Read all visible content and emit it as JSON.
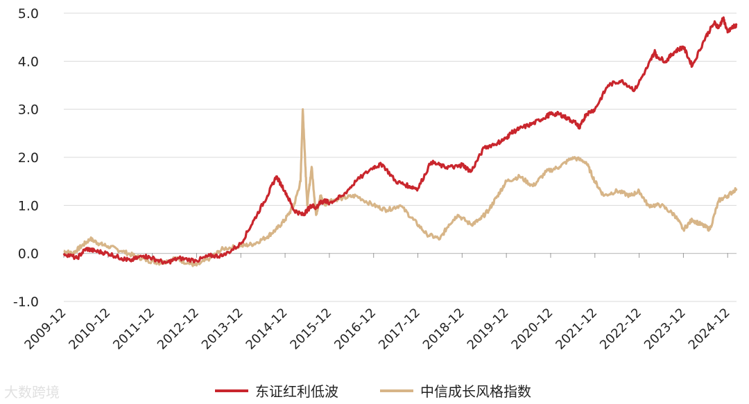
{
  "chart_data": {
    "type": "line",
    "title": "",
    "xlabel": "",
    "ylabel": "",
    "ylim": [
      -1.0,
      5.0
    ],
    "y_ticks": [
      "5.0",
      "4.0",
      "3.0",
      "2.0",
      "1.0",
      "0.0",
      "-1.0"
    ],
    "x_ticks": [
      "2009-12",
      "2010-12",
      "2011-12",
      "2012-12",
      "2013-12",
      "2014-12",
      "2015-12",
      "2016-12",
      "2017-12",
      "2018-12",
      "2019-12",
      "2020-12",
      "2021-12",
      "2022-12",
      "2023-12",
      "2024-12"
    ],
    "grid": "horizontal",
    "legend_position": "bottom",
    "x_unit": "years since 2009-12",
    "series": [
      {
        "name": "东证红利低波",
        "color": "#c9262d",
        "x": [
          0.0,
          0.3,
          0.5,
          0.7,
          1.0,
          1.3,
          1.5,
          1.8,
          2.0,
          2.3,
          2.6,
          3.0,
          3.3,
          3.6,
          4.0,
          4.3,
          4.6,
          4.8,
          5.0,
          5.2,
          5.4,
          5.5,
          5.6,
          5.7,
          5.8,
          5.9,
          6.0,
          6.3,
          6.6,
          7.0,
          7.2,
          7.5,
          7.8,
          8.0,
          8.3,
          8.6,
          8.9,
          9.0,
          9.2,
          9.5,
          9.8,
          10.0,
          10.1,
          10.3,
          10.6,
          10.9,
          11.0,
          11.2,
          11.4,
          11.6,
          11.65,
          11.8,
          12.0,
          12.3,
          12.6,
          12.9,
          13.2,
          13.35,
          13.4,
          13.6,
          13.8,
          14.0,
          14.2,
          14.5,
          14.7,
          14.8,
          14.9,
          15.0,
          15.1,
          15.2
        ],
        "y": [
          0.0,
          -0.1,
          0.1,
          0.05,
          0.0,
          -0.1,
          -0.15,
          -0.05,
          -0.1,
          -0.2,
          -0.1,
          -0.15,
          -0.05,
          -0.05,
          0.2,
          0.7,
          1.2,
          1.6,
          1.3,
          0.9,
          0.8,
          0.9,
          1.0,
          0.95,
          1.05,
          1.1,
          1.05,
          1.2,
          1.5,
          1.8,
          1.85,
          1.5,
          1.4,
          1.35,
          1.9,
          1.8,
          1.8,
          1.85,
          1.7,
          2.2,
          2.3,
          2.4,
          2.5,
          2.6,
          2.7,
          2.85,
          2.9,
          2.9,
          2.8,
          2.7,
          2.6,
          2.9,
          3.0,
          3.5,
          3.6,
          3.4,
          3.9,
          4.2,
          4.1,
          4.0,
          4.2,
          4.3,
          3.9,
          4.5,
          4.8,
          4.7,
          4.9,
          4.6,
          4.7,
          4.75
        ]
      },
      {
        "name": "中信成长风格指数",
        "color": "#d7b588",
        "x": [
          0.0,
          0.2,
          0.4,
          0.6,
          0.8,
          1.0,
          1.3,
          1.6,
          1.9,
          2.2,
          2.5,
          2.8,
          3.0,
          3.3,
          3.6,
          4.0,
          4.3,
          4.6,
          4.8,
          5.0,
          5.2,
          5.35,
          5.4,
          5.45,
          5.5,
          5.6,
          5.7,
          5.8,
          5.9,
          6.0,
          6.3,
          6.6,
          7.0,
          7.3,
          7.6,
          7.9,
          8.2,
          8.5,
          8.7,
          8.9,
          9.2,
          9.4,
          9.6,
          9.8,
          10.0,
          10.3,
          10.6,
          10.9,
          11.2,
          11.5,
          11.8,
          12.0,
          12.2,
          12.5,
          12.8,
          13.0,
          13.2,
          13.5,
          13.8,
          14.0,
          14.2,
          14.4,
          14.6,
          14.8,
          15.0,
          15.2
        ],
        "y": [
          0.05,
          0.0,
          0.15,
          0.3,
          0.2,
          0.15,
          0.05,
          -0.05,
          -0.15,
          -0.2,
          -0.1,
          -0.2,
          -0.25,
          -0.1,
          0.1,
          0.15,
          0.2,
          0.35,
          0.5,
          0.7,
          1.0,
          1.5,
          3.0,
          2.0,
          1.0,
          1.8,
          0.8,
          1.2,
          1.0,
          1.1,
          1.15,
          1.2,
          1.0,
          0.9,
          1.0,
          0.7,
          0.4,
          0.3,
          0.6,
          0.8,
          0.6,
          0.7,
          0.9,
          1.2,
          1.5,
          1.6,
          1.4,
          1.7,
          1.8,
          2.0,
          1.9,
          1.5,
          1.2,
          1.3,
          1.2,
          1.3,
          1.0,
          1.0,
          0.8,
          0.5,
          0.7,
          0.6,
          0.5,
          1.1,
          1.2,
          1.35
        ]
      }
    ]
  },
  "legend": [
    {
      "label": "东证红利低波",
      "color": "#c9262d"
    },
    {
      "label": "中信成长风格指数",
      "color": "#d7b588"
    }
  ],
  "watermark": "大数跨境"
}
